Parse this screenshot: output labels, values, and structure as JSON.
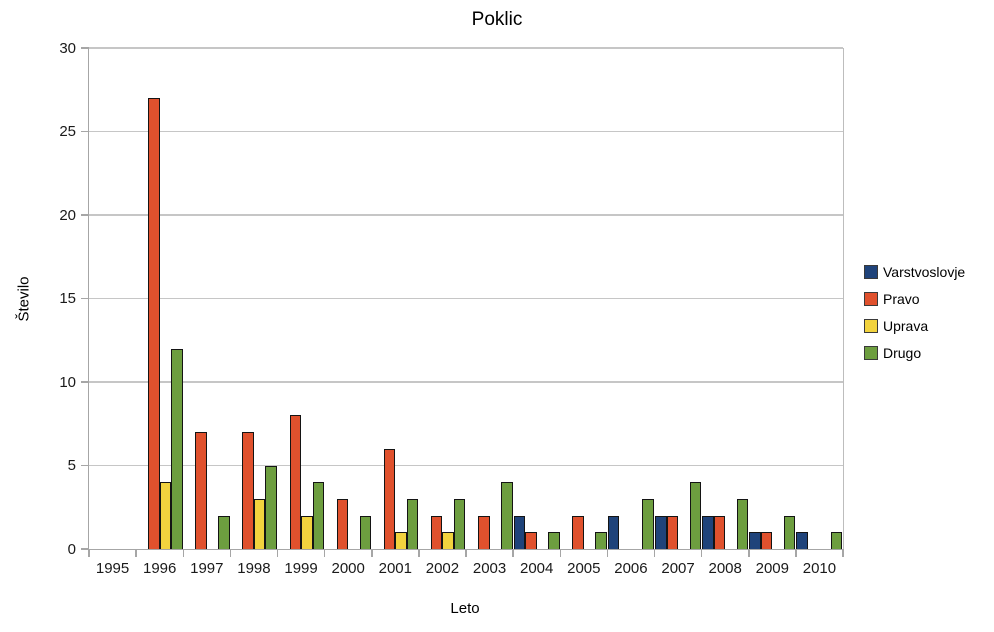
{
  "chart_data": {
    "type": "bar",
    "title": "Poklic",
    "xlabel": "Leto",
    "ylabel": "Število",
    "categories": [
      "1995",
      "1996",
      "1997",
      "1998",
      "1999",
      "2000",
      "2001",
      "2002",
      "2003",
      "2004",
      "2005",
      "2006",
      "2007",
      "2008",
      "2009",
      "2010"
    ],
    "series": [
      {
        "name": "Varstvoslovje",
        "color": "#1f437a",
        "values": [
          0,
          0,
          0,
          0,
          0,
          0,
          0,
          0,
          0,
          2,
          0,
          2,
          2,
          2,
          1,
          1
        ]
      },
      {
        "name": "Pravo",
        "color": "#e0512d",
        "values": [
          0,
          27,
          7,
          7,
          8,
          3,
          6,
          2,
          2,
          1,
          2,
          0,
          2,
          2,
          1,
          0
        ]
      },
      {
        "name": "Uprava",
        "color": "#f2d33e",
        "values": [
          0,
          4,
          0,
          3,
          2,
          0,
          1,
          1,
          0,
          0,
          0,
          0,
          0,
          0,
          0,
          0
        ]
      },
      {
        "name": "Drugo",
        "color": "#6d9e3f",
        "values": [
          0,
          12,
          2,
          5,
          4,
          2,
          3,
          3,
          4,
          1,
          1,
          3,
          4,
          3,
          2,
          1
        ]
      }
    ],
    "ylim": [
      0,
      30
    ],
    "yticks": [
      0,
      5,
      10,
      15,
      20,
      25,
      30
    ],
    "grid": true,
    "legend_position": "right",
    "axis_color": "#a6a6a6",
    "gridline_color": "#c6c6c6",
    "bar_border_color": "#141414"
  }
}
